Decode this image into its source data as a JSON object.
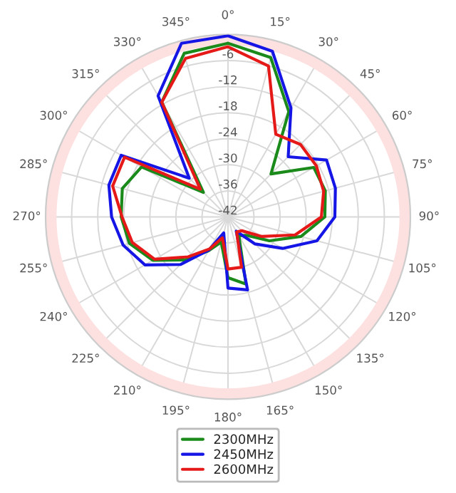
{
  "chart_data": {
    "type": "radar",
    "categories": [
      "0°",
      "15°",
      "30°",
      "45°",
      "60°",
      "75°",
      "90°",
      "105°",
      "120°",
      "135°",
      "150°",
      "165°",
      "180°",
      "195°",
      "210°",
      "225°",
      "240°",
      "255°",
      "270°",
      "285°",
      "300°",
      "315°",
      "330°",
      "345°"
    ],
    "series": [
      {
        "name": "2300MHz",
        "color": "#1a8a1a",
        "values": [
          -2,
          -4,
          -14,
          -28,
          -19.2,
          -18.8,
          -19.7,
          -24.6,
          -31,
          -36,
          -37,
          -26,
          -28,
          -36,
          -33,
          -28,
          -22,
          -18.5,
          -17.4,
          -16.8,
          -19,
          -34,
          -11.5,
          -3
        ]
      },
      {
        "name": "2450MHz",
        "color": "#1515e6",
        "values": [
          -0.3,
          -2.5,
          -13,
          -22.4,
          -15.8,
          -16.4,
          -17.4,
          -20.8,
          -27.5,
          -33.2,
          -38.2,
          -24.6,
          -25.6,
          -38.2,
          -33.2,
          -26.5,
          -19.9,
          -17,
          -15.2,
          -13.6,
          -13.6,
          -29.4,
          -9.8,
          -0.6
        ]
      },
      {
        "name": "2600MHz",
        "color": "#e61919",
        "values": [
          -2.8,
          -6,
          -20,
          -18.4,
          -18.5,
          -19.2,
          -20.5,
          -26,
          -33,
          -37.5,
          -38,
          -30,
          -30,
          -37,
          -33.5,
          -29,
          -22.5,
          -19.2,
          -17.6,
          -14.5,
          -14.5,
          -33,
          -11.5,
          -4.2
        ]
      }
    ],
    "ylim": [
      -42,
      0
    ],
    "yticks": [
      -42,
      -36,
      -30,
      -24,
      -18,
      -12,
      -6
    ],
    "grid": true,
    "legend": "bottom"
  }
}
